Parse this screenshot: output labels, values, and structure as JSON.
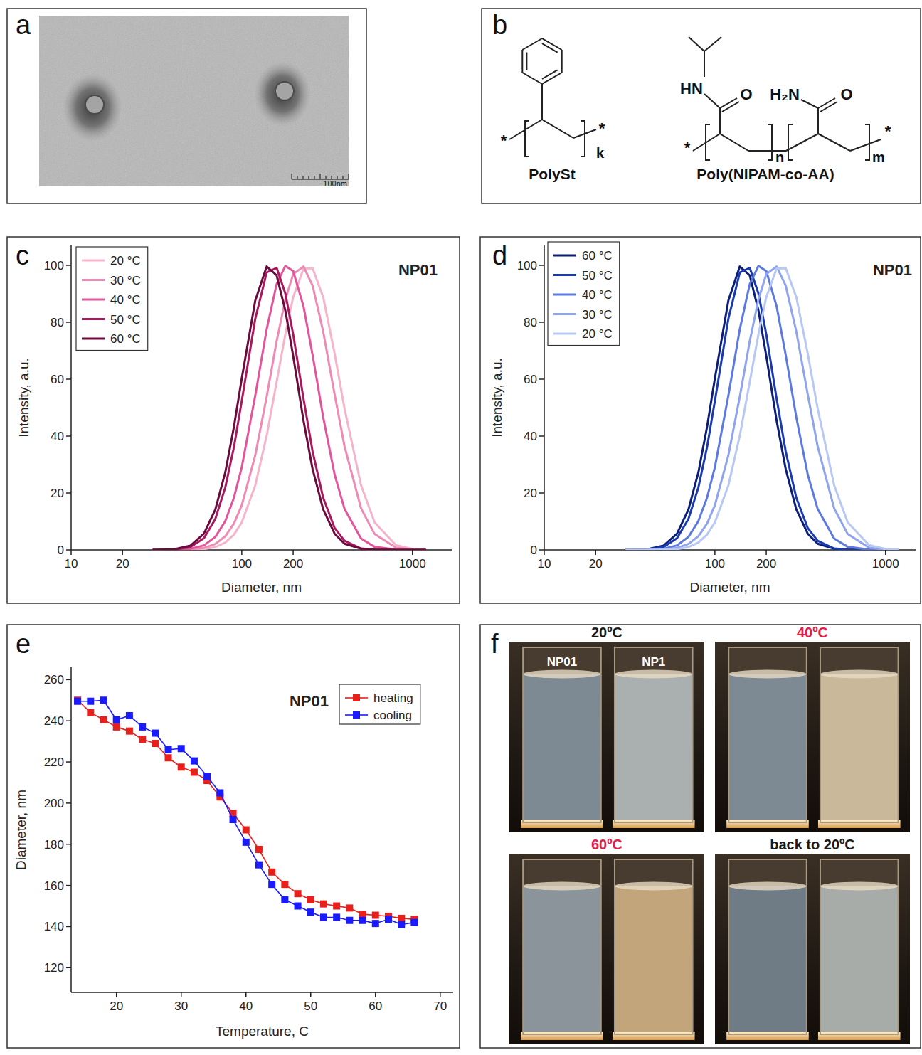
{
  "chart_data": [
    {
      "type": "line",
      "title": "NP01",
      "annotations": [
        "c"
      ],
      "x_label": "Diameter, nm",
      "y_label": "Intensity, a.u.",
      "x": [
        30,
        40,
        50,
        60,
        70,
        80,
        90,
        100,
        120,
        140,
        160,
        180,
        200,
        230,
        260,
        300,
        350,
        400,
        500,
        600,
        800,
        1000,
        1200
      ],
      "series": [
        {
          "name": "20 °C",
          "color": "#f6b3cc",
          "values": [
            0,
            0,
            0.1,
            0.3,
            1.0,
            2.6,
            5.4,
            9.7,
            22.7,
            40.2,
            59.0,
            75.8,
            88.8,
            98.9,
            99.0,
            88.8,
            69.0,
            49.7,
            22.7,
            9.7,
            1.7,
            0.3,
            0.1
          ]
        },
        {
          "name": "30 °C",
          "color": "#ee8ab3",
          "values": [
            0,
            0,
            0.2,
            0.7,
            2.1,
            4.8,
            9.3,
            15.7,
            33.3,
            53.9,
            73.3,
            88.0,
            96.9,
            99.6,
            92.9,
            76.7,
            54.6,
            36.4,
            14.6,
            5.6,
            0.8,
            0.1,
            0
          ]
        },
        {
          "name": "40 °C",
          "color": "#e2559a",
          "values": [
            0,
            0,
            0.4,
            1.6,
            4.6,
            10.1,
            18.4,
            29.1,
            54.3,
            77.6,
            93.4,
            99.8,
            98.0,
            85.6,
            68.5,
            46.6,
            26.5,
            14.4,
            4.0,
            1.1,
            0.1,
            0,
            0
          ]
        },
        {
          "name": "50 °C",
          "color": "#a8195e",
          "values": [
            0,
            0.1,
            1.0,
            4.1,
            10.9,
            21.9,
            36.2,
            52.4,
            81.3,
            97.5,
            99.1,
            90.1,
            75.8,
            53.1,
            34.6,
            18.3,
            7.7,
            3.2,
            0.5,
            0.1,
            0,
            0,
            0
          ]
        },
        {
          "name": "60 °C",
          "color": "#6b0a3c",
          "values": [
            0,
            0.2,
            1.5,
            5.7,
            14.2,
            27.2,
            43.3,
            60.3,
            87.7,
            99.6,
            96.5,
            84.1,
            68.2,
            45.4,
            28.4,
            14.2,
            5.7,
            2.2,
            0.4,
            0.1,
            0,
            0,
            0
          ]
        }
      ],
      "xlim": [
        10,
        1700
      ],
      "ylim": [
        0,
        107
      ],
      "xticks": [
        10,
        20,
        100,
        200,
        1000
      ],
      "yticks": [
        0,
        20,
        40,
        60,
        80,
        100
      ],
      "log": "x",
      "legend": "upper left"
    },
    {
      "type": "line",
      "title": "NP01",
      "annotations": [
        "d"
      ],
      "x_label": "Diameter, nm",
      "y_label": "Intensity, a.u.",
      "x": [
        30,
        40,
        50,
        60,
        70,
        80,
        90,
        100,
        120,
        140,
        160,
        180,
        200,
        230,
        260,
        300,
        350,
        400,
        500,
        600,
        800,
        1000,
        1200
      ],
      "series": [
        {
          "name": "60 °C",
          "color": "#0c1f78",
          "values": [
            0,
            0.2,
            1.5,
            5.7,
            14.2,
            27.2,
            43.3,
            60.3,
            87.7,
            99.6,
            96.5,
            84.1,
            68.2,
            45.4,
            28.4,
            14.2,
            5.7,
            2.2,
            0.4,
            0.1,
            0,
            0,
            0
          ]
        },
        {
          "name": "50 °C",
          "color": "#1a3ab0",
          "values": [
            0,
            0.1,
            1.0,
            4.1,
            10.9,
            21.9,
            36.2,
            52.4,
            81.3,
            97.5,
            99.1,
            90.1,
            75.8,
            53.1,
            34.6,
            18.3,
            7.7,
            3.2,
            0.5,
            0.1,
            0,
            0,
            0
          ]
        },
        {
          "name": "40 °C",
          "color": "#5d7ae0",
          "values": [
            0,
            0,
            0.4,
            1.6,
            4.6,
            10.1,
            18.4,
            29.1,
            54.3,
            77.6,
            93.4,
            99.8,
            98.0,
            85.6,
            68.5,
            46.6,
            26.5,
            14.4,
            4.0,
            1.1,
            0.1,
            0,
            0
          ]
        },
        {
          "name": "30 °C",
          "color": "#8ea4ec",
          "values": [
            0,
            0,
            0.2,
            0.7,
            2.1,
            4.8,
            9.3,
            15.7,
            33.3,
            53.9,
            73.3,
            88.0,
            96.9,
            99.6,
            92.9,
            76.7,
            54.6,
            36.4,
            14.6,
            5.6,
            0.8,
            0.1,
            0
          ]
        },
        {
          "name": "20 °C",
          "color": "#b8c8f4",
          "values": [
            0,
            0,
            0.1,
            0.3,
            1.0,
            2.6,
            5.4,
            9.7,
            22.7,
            40.2,
            59.0,
            75.8,
            88.8,
            98.9,
            99.0,
            88.8,
            69.0,
            49.7,
            22.7,
            9.7,
            1.7,
            0.3,
            0.1
          ]
        }
      ],
      "xlim": [
        10,
        1500
      ],
      "ylim": [
        0,
        107
      ],
      "xticks": [
        10,
        20,
        100,
        200,
        1000
      ],
      "yticks": [
        0,
        20,
        40,
        60,
        80,
        100
      ],
      "log": "x",
      "legend": "upper left"
    },
    {
      "type": "line",
      "title": "NP01",
      "annotations": [
        "e"
      ],
      "x_label": "Temperature, C",
      "y_label": "Diameter, nm",
      "x": [
        14,
        16,
        18,
        20,
        22,
        24,
        26,
        28,
        30,
        32,
        34,
        36,
        38,
        40,
        42,
        44,
        46,
        48,
        50,
        52,
        54,
        56,
        58,
        60,
        62,
        64,
        66
      ],
      "series": [
        {
          "name": "heating",
          "color": "#e8201c",
          "marker": "square",
          "values": [
            250,
            244,
            240.5,
            237,
            235,
            231,
            229,
            222,
            217.5,
            215,
            211,
            203,
            195,
            187,
            177.5,
            166.5,
            160.5,
            156,
            153,
            151,
            150,
            149,
            146,
            145.5,
            145,
            144,
            143.5
          ]
        },
        {
          "name": "cooling",
          "color": "#1a1aff",
          "marker": "square",
          "values": [
            249.5,
            249.5,
            250,
            240.5,
            242.5,
            237,
            234,
            226,
            226.5,
            220.5,
            213,
            205,
            192,
            181,
            170,
            160.5,
            153,
            150,
            147,
            144.5,
            144.5,
            143,
            143,
            141.5,
            143.5,
            141,
            142
          ]
        }
      ],
      "xlim": [
        13,
        72
      ],
      "ylim": [
        108,
        266
      ],
      "xticks": [
        20,
        30,
        40,
        50,
        60,
        70
      ],
      "yticks": [
        120,
        140,
        160,
        180,
        200,
        220,
        240,
        260
      ],
      "legend": "upper right"
    }
  ],
  "panel_a": {
    "letter": "a",
    "scale_bar": "100nm"
  },
  "panel_b": {
    "letter": "b",
    "end_group": "*",
    "structures": [
      {
        "name": "PolySt",
        "subscripts": [
          "k"
        ]
      },
      {
        "name": "Poly(NIPAM-co-AA)",
        "atoms": [
          "HN",
          "O",
          "H₂N",
          "O"
        ],
        "subscripts": [
          "n",
          "m"
        ]
      }
    ]
  },
  "panel_f": {
    "letter": "f",
    "samples": [
      "NP01",
      "NP1"
    ],
    "photos": [
      {
        "title": "20ºC",
        "title_color": "#1a1a1a",
        "colors": [
          "#7d8a94",
          "#aab0b0"
        ]
      },
      {
        "title": "40ºC",
        "title_color": "#e0204a",
        "colors": [
          "#7d8a94",
          "#c9b89a"
        ]
      },
      {
        "title": "60ºC",
        "title_color": "#e0204a",
        "colors": [
          "#8a949a",
          "#c2a57a"
        ]
      },
      {
        "title": "back to 20ºC",
        "title_color": "#1a1a1a",
        "colors": [
          "#6f7c86",
          "#a8aca8"
        ]
      }
    ]
  }
}
